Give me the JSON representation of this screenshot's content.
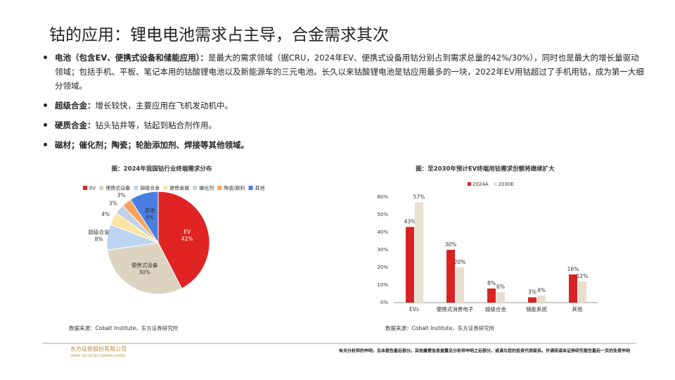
{
  "title": "钴的应用：锂电电池需求占主导，合金需求其次",
  "bullets": [
    {
      "lead": "电池（包含EV、便携式设备和储能应用）：",
      "text": "是最大的需求领域（据CRU，2024年EV、便携式设备用钴分别占到需求总量的42%/30%），同时也是最大的增长量驱动领域；包括手机、平板、笔记本用的钴酸锂电池以及新能源车的三元电池。长久以来钴酸锂电池是钴应用最多的一块，2022年EV用钴超过了手机用钴，成为第一大细分领域。"
    },
    {
      "lead": "超级合金：",
      "text": "增长较快，主要应用在飞机发动机中。"
    },
    {
      "lead": "硬质合金：",
      "text": "钻头钻井等，钴起到粘合剂作用。"
    },
    {
      "lead": "磁材；催化剂；陶瓷；轮胎添加剂、焊接等其他领域。"
    }
  ],
  "chart_data": [
    {
      "type": "pie",
      "title": "图：2024年我国钴行业终端需求分布",
      "categories": [
        "EV",
        "便携式设备",
        "超级合金",
        "硬质金属",
        "催化剂",
        "陶瓷/颜料",
        "其他"
      ],
      "values": [
        42,
        30,
        8,
        4,
        3,
        3,
        9
      ],
      "value_labels": [
        "42%",
        "30%",
        "8%",
        "4%",
        "3%",
        "3%",
        "9%"
      ],
      "colors": [
        "#e02424",
        "#ddd3c1",
        "#bcd5f0",
        "#fbe5a3",
        "#c3d0e6",
        "#f5a35c",
        "#4a7fe2"
      ],
      "source": "数据来源：Cobalt Institute，东方证券研究所"
    },
    {
      "type": "bar",
      "title": "图：至2030年预计EV终端用钴需求份额将继续扩大",
      "categories": [
        "EVs",
        "便携式消费电子",
        "超级合金",
        "储能系统",
        "其他"
      ],
      "series": [
        {
          "name": "2024A",
          "color": "#d92323",
          "values": [
            43,
            30,
            8,
            3,
            16
          ],
          "value_labels": [
            "43%",
            "30%",
            "8%",
            "3%",
            "16%"
          ]
        },
        {
          "name": "2030E",
          "color": "#e9dfcf",
          "values": [
            57,
            20,
            6,
            4,
            12
          ],
          "value_labels": [
            "57%",
            "20%",
            "6%",
            "4%",
            "12%"
          ]
        }
      ],
      "ylim": [
        0,
        60
      ],
      "yticks": [
        {
          "value": 0,
          "label": "0%"
        },
        {
          "value": 10,
          "label": "10%"
        },
        {
          "value": 20,
          "label": "20%"
        },
        {
          "value": 30,
          "label": "30%"
        },
        {
          "value": 40,
          "label": "40%"
        },
        {
          "value": 50,
          "label": "50%"
        },
        {
          "value": 60,
          "label": "60%"
        }
      ],
      "legend": "top",
      "source": "数据来源：Cobalt Institute，东方证券研究所"
    }
  ],
  "footer": {
    "company": "东方证券股份有限公司",
    "company_en": "ORIENT SECURITIES COMPANY LIMITED",
    "disclaimer": "有关分析师的申明，见本报告最后部分。其他重要信息披露见分析师申明之后部分，或请与您的投资代表联系。并请阅读本证券研究报告最后一页的免责申明"
  }
}
